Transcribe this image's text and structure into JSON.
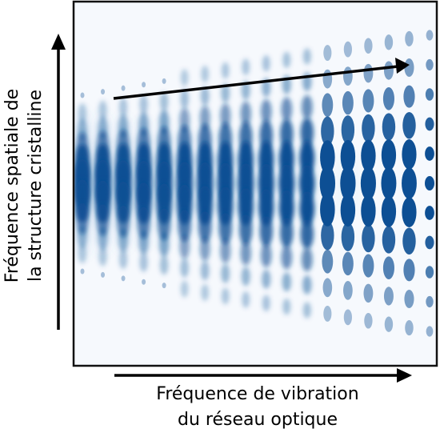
{
  "x_axis_label": {
    "line1": "Fréquence de vibration",
    "line2": "du réseau optique"
  },
  "y_axis_label": {
    "line1": "Fréquence spatiale de",
    "line2": "la structure cristalline"
  },
  "colors": {
    "spot": "#0d4f94",
    "spot_light": "#7fb1d9",
    "frame": "#111111",
    "arrow": "#000000"
  }
}
